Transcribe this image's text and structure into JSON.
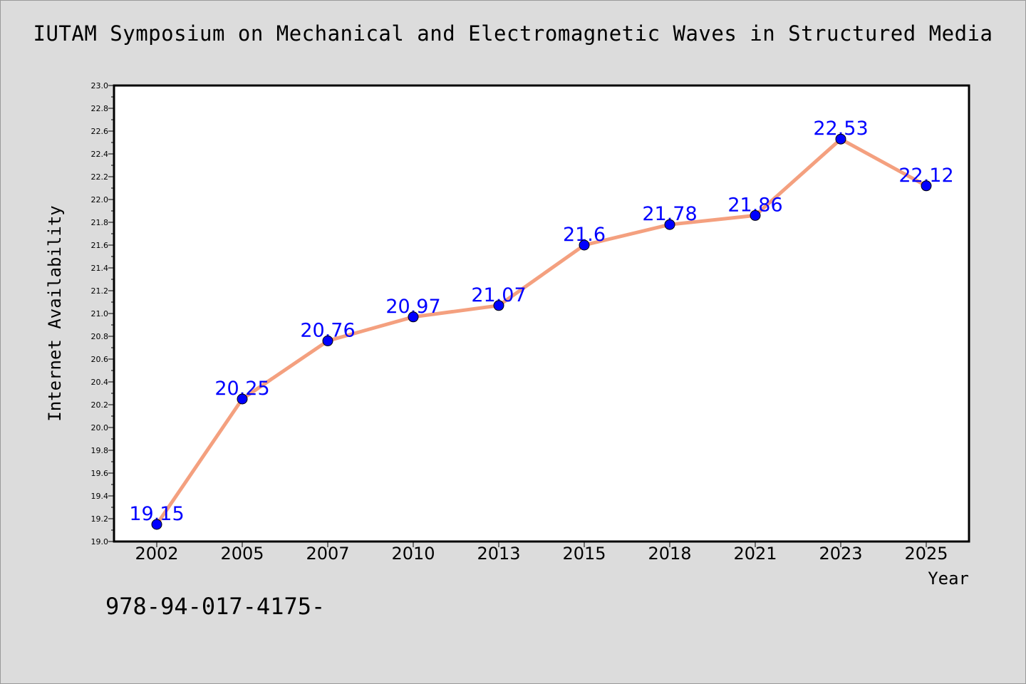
{
  "chart_data": {
    "type": "line",
    "title": "IUTAM Symposium on Mechanical and Electromagnetic Waves in Structured Media",
    "xlabel": "Year",
    "ylabel": "Internet Availability",
    "categories": [
      "2002",
      "2005",
      "2007",
      "2010",
      "2013",
      "2015",
      "2018",
      "2021",
      "2023",
      "2025"
    ],
    "series": [
      {
        "values": [
          19.15,
          20.25,
          20.76,
          20.97,
          21.07,
          21.6,
          21.78,
          21.86,
          22.53,
          22.12
        ],
        "value_labels": [
          "19.15",
          "20.25",
          "20.76",
          "20.97",
          "21.07",
          "21.6",
          "21.78",
          "21.86",
          "22.53",
          "22.12"
        ]
      }
    ],
    "ylim": [
      19.0,
      23.0
    ],
    "yticks": [
      "19.0",
      "19.2",
      "19.4",
      "19.6",
      "19.8",
      "20.0",
      "20.2",
      "20.4",
      "20.6",
      "20.8",
      "21.0",
      "21.2",
      "21.4",
      "21.6",
      "21.8",
      "22.0",
      "22.2",
      "22.4",
      "22.6",
      "22.8",
      "23.0"
    ],
    "grid": false,
    "legend": "none",
    "colors": {
      "line": "#f4a07f",
      "marker": "#0000ff",
      "label": "#0000ff",
      "background": "#dcdcdc",
      "plot_background": "#ffffff"
    }
  },
  "footnote": "978-94-017-4175-"
}
